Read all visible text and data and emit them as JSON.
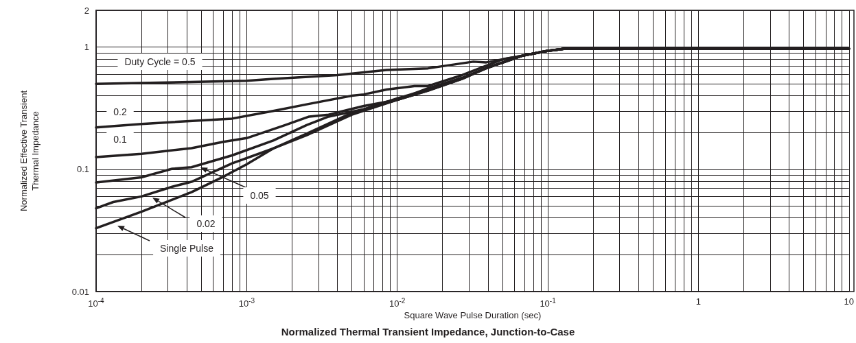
{
  "chart_data": {
    "type": "line",
    "title": "Normalized Thermal Transient Impedance, Junction-to-Case",
    "xlabel": "Square Wave Pulse Duration (sec)",
    "ylabel": "Normalized Effective Transient\nThermal Impedance",
    "log": "xy",
    "grid": true,
    "marker": "none",
    "line_style": "solid",
    "xlim": [
      0.0001,
      10
    ],
    "ylim": [
      0.01,
      2
    ],
    "xticks": [
      {
        "value": 0.0001,
        "label": "10$^{-4}$"
      },
      {
        "value": 0.001,
        "label": "10$^{-3}$"
      },
      {
        "value": 0.01,
        "label": "10$^{-2}$"
      },
      {
        "value": 0.1,
        "label": "10$^{-1}$"
      },
      1,
      10
    ],
    "yticks": [
      0.01,
      0.1,
      1,
      2
    ],
    "series": [
      {
        "name": "Duty Cycle = 0.5",
        "color": "#231f20",
        "x": [
          0.0001,
          0.001,
          0.0015,
          0.004,
          0.0085,
          0.016,
          0.032,
          0.039,
          0.068,
          0.099,
          0.13,
          10
        ],
        "values": [
          0.5,
          0.53,
          0.55,
          0.59,
          0.65,
          0.67,
          0.76,
          0.75,
          0.85,
          0.93,
          0.97,
          0.97
        ]
      },
      {
        "name": "0.2",
        "color": "#231f20",
        "x": [
          0.0001,
          0.0002,
          0.0008,
          0.0015,
          0.0025,
          0.005,
          0.006,
          0.0085,
          0.013,
          0.016,
          0.027,
          0.051,
          0.068,
          0.099,
          0.13,
          10
        ],
        "values": [
          0.22,
          0.235,
          0.26,
          0.3,
          0.34,
          0.4,
          0.41,
          0.45,
          0.48,
          0.48,
          0.59,
          0.8,
          0.85,
          0.93,
          0.97,
          0.97
        ]
      },
      {
        "name": "0.1",
        "color": "#231f20",
        "x": [
          0.0001,
          0.0002,
          0.00043,
          0.0007,
          0.001,
          0.0018,
          0.0026,
          0.0035,
          0.006,
          0.01,
          0.016,
          0.027,
          0.04,
          0.068,
          0.099,
          0.13,
          10
        ],
        "values": [
          0.126,
          0.134,
          0.149,
          0.168,
          0.18,
          0.23,
          0.27,
          0.28,
          0.33,
          0.37,
          0.46,
          0.56,
          0.68,
          0.85,
          0.93,
          0.97,
          0.97
        ]
      },
      {
        "name": "0.05",
        "color": "#231f20",
        "x": [
          0.0001,
          0.0002,
          0.00032,
          0.00043,
          0.0008,
          0.0015,
          0.0025,
          0.0035,
          0.006,
          0.01,
          0.016,
          0.027,
          0.04,
          0.068,
          0.099,
          0.13,
          10
        ],
        "values": [
          0.078,
          0.086,
          0.101,
          0.104,
          0.13,
          0.172,
          0.23,
          0.27,
          0.31,
          0.38,
          0.45,
          0.56,
          0.68,
          0.85,
          0.93,
          0.97,
          0.97
        ]
      },
      {
        "name": "0.02",
        "color": "#231f20",
        "x": [
          0.0001,
          0.00013,
          0.0002,
          0.00032,
          0.00043,
          0.0008,
          0.0015,
          0.0025,
          0.005,
          0.01,
          0.016,
          0.027,
          0.04,
          0.068,
          0.099,
          0.13,
          10
        ],
        "values": [
          0.048,
          0.054,
          0.06,
          0.072,
          0.079,
          0.112,
          0.148,
          0.196,
          0.29,
          0.37,
          0.44,
          0.55,
          0.68,
          0.85,
          0.93,
          0.97,
          0.97
        ]
      },
      {
        "name": "Single Pulse",
        "color": "#231f20",
        "x": [
          0.0001,
          0.0002,
          0.00043,
          0.0007,
          0.001,
          0.0015,
          0.0025,
          0.005,
          0.01,
          0.016,
          0.027,
          0.04,
          0.068,
          0.099,
          0.13,
          10
        ],
        "values": [
          0.033,
          0.045,
          0.065,
          0.087,
          0.11,
          0.148,
          0.19,
          0.28,
          0.37,
          0.44,
          0.55,
          0.68,
          0.85,
          0.93,
          0.97,
          0.97
        ]
      }
    ]
  }
}
